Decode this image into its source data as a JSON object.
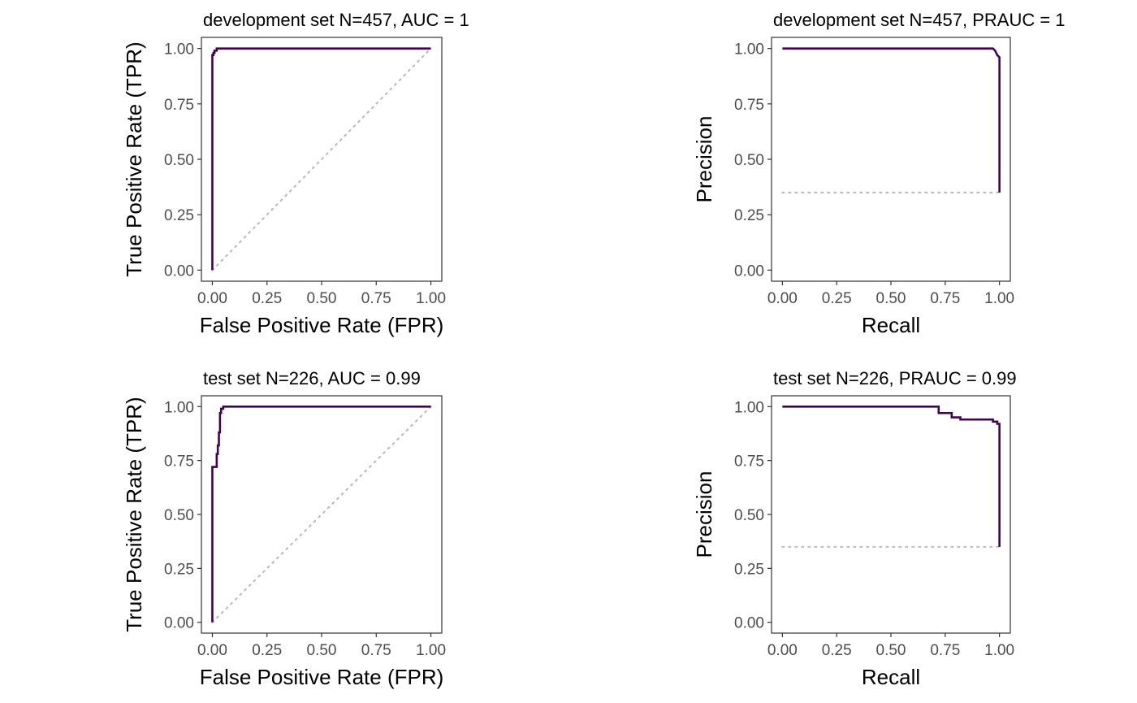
{
  "chart_data": [
    {
      "type": "line",
      "title": "development set N=457, AUC = 1",
      "xlabel": "False Positive Rate (FPR)",
      "ylabel": "True Positive Rate (TPR)",
      "xlim": [
        0,
        1
      ],
      "ylim": [
        0,
        1
      ],
      "xticks": [
        "0.00",
        "0.25",
        "0.50",
        "0.75",
        "1.00"
      ],
      "yticks": [
        "0.00",
        "0.25",
        "0.50",
        "0.75",
        "1.00"
      ],
      "grid": false,
      "series": [
        {
          "color": "#440154",
          "x": [
            0,
            0,
            0.005,
            0.005,
            0.01,
            0.01,
            0.02,
            0.02,
            1
          ],
          "y": [
            0,
            0.97,
            0.97,
            0.98,
            0.98,
            0.99,
            0.99,
            1,
            1
          ]
        }
      ],
      "reference": {
        "style": "dotted",
        "color": "#bdbdbd",
        "x": [
          0,
          1
        ],
        "y": [
          0,
          1
        ]
      }
    },
    {
      "type": "line",
      "title": "development set N=457, PRAUC = 1",
      "xlabel": "Recall",
      "ylabel": "Precision",
      "xlim": [
        0,
        1
      ],
      "ylim": [
        0,
        1
      ],
      "xticks": [
        "0.00",
        "0.25",
        "0.50",
        "0.75",
        "1.00"
      ],
      "yticks": [
        "0.00",
        "0.25",
        "0.50",
        "0.75",
        "1.00"
      ],
      "grid": false,
      "series": [
        {
          "color": "#440154",
          "x": [
            0,
            0.97,
            0.98,
            0.99,
            1,
            1
          ],
          "y": [
            1,
            1,
            0.99,
            0.97,
            0.96,
            0.35
          ]
        }
      ],
      "reference": {
        "style": "dotted",
        "color": "#bdbdbd",
        "x": [
          0,
          1
        ],
        "y": [
          0.35,
          0.35
        ]
      }
    },
    {
      "type": "line",
      "title": "test set N=226, AUC = 0.99",
      "xlabel": "False Positive Rate (FPR)",
      "ylabel": "True Positive Rate (TPR)",
      "xlim": [
        0,
        1
      ],
      "ylim": [
        0,
        1
      ],
      "xticks": [
        "0.00",
        "0.25",
        "0.50",
        "0.75",
        "1.00"
      ],
      "yticks": [
        "0.00",
        "0.25",
        "0.50",
        "0.75",
        "1.00"
      ],
      "grid": false,
      "series": [
        {
          "color": "#440154",
          "x": [
            0,
            0,
            0.02,
            0.02,
            0.025,
            0.025,
            0.03,
            0.03,
            0.035,
            0.035,
            0.04,
            0.04,
            0.05,
            0.05,
            1
          ],
          "y": [
            0,
            0.72,
            0.72,
            0.78,
            0.78,
            0.82,
            0.82,
            0.88,
            0.88,
            0.97,
            0.97,
            0.99,
            0.99,
            1,
            1
          ]
        }
      ],
      "reference": {
        "style": "dotted",
        "color": "#bdbdbd",
        "x": [
          0,
          1
        ],
        "y": [
          0,
          1
        ]
      }
    },
    {
      "type": "line",
      "title": "test set N=226, PRAUC = 0.99",
      "xlabel": "Recall",
      "ylabel": "Precision",
      "xlim": [
        0,
        1
      ],
      "ylim": [
        0,
        1
      ],
      "xticks": [
        "0.00",
        "0.25",
        "0.50",
        "0.75",
        "1.00"
      ],
      "yticks": [
        "0.00",
        "0.25",
        "0.50",
        "0.75",
        "1.00"
      ],
      "grid": false,
      "series": [
        {
          "color": "#440154",
          "x": [
            0,
            0.72,
            0.72,
            0.78,
            0.78,
            0.82,
            0.82,
            0.88,
            0.88,
            0.97,
            0.97,
            0.99,
            0.99,
            1,
            1
          ],
          "y": [
            1,
            1,
            0.97,
            0.97,
            0.95,
            0.95,
            0.94,
            0.94,
            0.94,
            0.94,
            0.93,
            0.93,
            0.92,
            0.92,
            0.35
          ]
        }
      ],
      "reference": {
        "style": "dotted",
        "color": "#bdbdbd",
        "x": [
          0,
          1
        ],
        "y": [
          0.35,
          0.35
        ]
      }
    }
  ]
}
